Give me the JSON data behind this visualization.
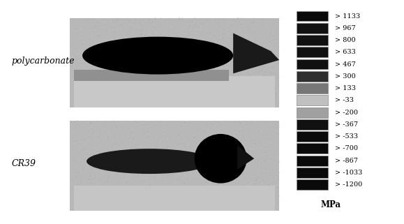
{
  "legend_labels": [
    "> 1133",
    "> 967",
    "> 800",
    "> 633",
    "> 467",
    "> 300",
    "> 133",
    "> -33",
    "> -200",
    "> -367",
    "> -533",
    "> -700",
    "> -867",
    "> -1033",
    "> -1200"
  ],
  "legend_colors": [
    "#000000",
    "#000000",
    "#000000",
    "#000000",
    "#000000",
    "#333333",
    "#888888",
    "#bbbbbb",
    "#aaaaaa",
    "#000000",
    "#000000",
    "#000000",
    "#000000",
    "#000000",
    "#000000"
  ],
  "label1": "polycarbonate",
  "label2": "CR39",
  "unit": "MPa",
  "bg_color": "#d8d8d8",
  "fig_bg": "#ffffff"
}
